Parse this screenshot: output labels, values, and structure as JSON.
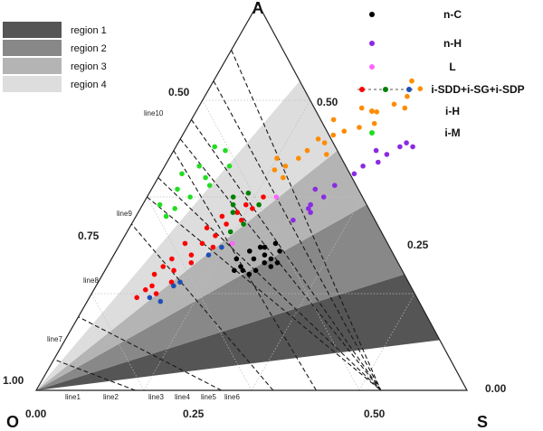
{
  "chart_data": {
    "type": "scatter",
    "subtype": "ternary",
    "vertices": {
      "top": "A",
      "left": "O",
      "right": "S"
    },
    "axis_ticks": {
      "O": [
        "0.50",
        "0.75",
        "1.00"
      ],
      "S": [
        "0.50",
        "0.25",
        "0.00"
      ],
      "base": [
        "0.00",
        "0.25",
        "0.50"
      ]
    },
    "regions": {
      "labels": [
        "region 1",
        "region 2",
        "region 3",
        "region 4"
      ],
      "colors": [
        "#555555",
        "#888888",
        "#b4b4b4",
        "#dddddd"
      ],
      "wedges": [
        {
          "name": "region 1",
          "fill": "#555555",
          "a_at_right": [
            0.13,
            0.3
          ]
        },
        {
          "name": "region 2",
          "fill": "#888888",
          "a_at_right": [
            0.3,
            0.48
          ]
        },
        {
          "name": "region 3",
          "fill": "#b4b4b4",
          "a_at_right": [
            0.48,
            0.62
          ]
        },
        {
          "name": "region 4",
          "fill": "#dddddd",
          "a_at_right": [
            0.62,
            0.8
          ]
        }
      ]
    },
    "dashed_lines": [
      {
        "label": "line1",
        "p1": [
          0.0,
          0.88
        ],
        "p2": [
          0.8,
          0.0
        ]
      },
      {
        "label": "line2",
        "p1": [
          0.0,
          0.8
        ],
        "p2": [
          0.8,
          0.0
        ]
      },
      {
        "label": "line3",
        "p1": [
          0.0,
          0.7
        ],
        "p2": [
          0.8,
          0.0
        ]
      },
      {
        "label": "line4",
        "p1": [
          0.0,
          0.65
        ],
        "p2": [
          0.8,
          0.0
        ]
      },
      {
        "label": "line5",
        "p1": [
          0.0,
          0.55
        ],
        "p2": [
          0.8,
          0.0
        ]
      },
      {
        "label": "line6",
        "p1": [
          0.0,
          0.5
        ],
        "p2": [
          0.8,
          0.0
        ]
      },
      {
        "label": "line7",
        "p1": [
          0.23,
          0.0
        ],
        "p2": [
          0.0,
          0.08
        ]
      },
      {
        "label": "line8",
        "p1": [
          0.43,
          0.0
        ],
        "p2": [
          0.0,
          0.19
        ]
      },
      {
        "label": "line9",
        "p1": [
          0.55,
          0.0
        ],
        "p2": [
          0.0,
          0.43
        ]
      },
      {
        "label": "line10",
        "p1": [
          0.65,
          0.0
        ],
        "p2": [
          0.0,
          0.62
        ]
      }
    ],
    "series": [
      {
        "name": "n-C",
        "marker_color": "#000000",
        "points": [
          [
            0.29,
            0.34
          ],
          [
            0.3,
            0.31
          ],
          [
            0.31,
            0.32
          ],
          [
            0.32,
            0.31
          ],
          [
            0.33,
            0.34
          ],
          [
            0.34,
            0.3
          ],
          [
            0.34,
            0.37
          ],
          [
            0.35,
            0.31
          ],
          [
            0.35,
            0.35
          ],
          [
            0.36,
            0.33
          ],
          [
            0.36,
            0.38
          ],
          [
            0.37,
            0.34
          ],
          [
            0.38,
            0.32
          ],
          [
            0.38,
            0.36
          ],
          [
            0.39,
            0.33
          ],
          [
            0.31,
            0.36
          ],
          [
            0.33,
            0.37
          ]
        ]
      },
      {
        "name": "n-H",
        "marker_color": "#8a2be2",
        "points": [
          [
            0.37,
            0.44
          ],
          [
            0.39,
            0.48
          ],
          [
            0.4,
            0.46
          ],
          [
            0.41,
            0.5
          ],
          [
            0.42,
            0.53
          ],
          [
            0.45,
            0.56
          ],
          [
            0.46,
            0.58
          ],
          [
            0.47,
            0.62
          ],
          [
            0.49,
            0.59
          ],
          [
            0.5,
            0.61
          ],
          [
            0.52,
            0.63
          ],
          [
            0.53,
            0.64
          ],
          [
            0.55,
            0.63
          ],
          [
            0.38,
            0.52
          ],
          [
            0.39,
            0.47
          ]
        ]
      },
      {
        "name": "L",
        "marker_color": "#ff66ff",
        "points": [
          [
            0.26,
            0.38
          ],
          [
            0.3,
            0.5
          ]
        ]
      },
      {
        "name": "i-SDD+i-SG+i-SDP",
        "marker_colors": [
          "#ff0000",
          "#008000",
          "#1e4fb4"
        ],
        "points_red": [
          [
            0.11,
            0.24
          ],
          [
            0.13,
            0.27
          ],
          [
            0.12,
            0.3
          ],
          [
            0.16,
            0.31
          ],
          [
            0.14,
            0.34
          ],
          [
            0.18,
            0.35
          ],
          [
            0.19,
            0.38
          ],
          [
            0.21,
            0.4
          ],
          [
            0.22,
            0.43
          ],
          [
            0.23,
            0.46
          ],
          [
            0.18,
            0.42
          ],
          [
            0.15,
            0.38
          ],
          [
            0.2,
            0.45
          ],
          [
            0.24,
            0.48
          ],
          [
            0.17,
            0.28
          ],
          [
            0.22,
            0.37
          ],
          [
            0.25,
            0.44
          ],
          [
            0.26,
            0.47
          ],
          [
            0.27,
            0.5
          ],
          [
            0.13,
            0.32
          ],
          [
            0.15,
            0.25
          ],
          [
            0.19,
            0.33
          ],
          [
            0.12,
            0.26
          ]
        ],
        "points_green": [
          [
            0.21,
            0.48
          ],
          [
            0.23,
            0.51
          ],
          [
            0.26,
            0.43
          ],
          [
            0.24,
            0.41
          ],
          [
            0.2,
            0.5
          ],
          [
            0.22,
            0.46
          ],
          [
            0.27,
            0.48
          ]
        ],
        "points_blue": [
          [
            0.14,
            0.24
          ],
          [
            0.18,
            0.27
          ],
          [
            0.17,
            0.23
          ],
          [
            0.22,
            0.35
          ],
          [
            0.19,
            0.28
          ],
          [
            0.24,
            0.37
          ]
        ]
      },
      {
        "name": "i-H",
        "marker_color": "#ff8c00",
        "points": [
          [
            0.28,
            0.58
          ],
          [
            0.3,
            0.6
          ],
          [
            0.31,
            0.62
          ],
          [
            0.34,
            0.64
          ],
          [
            0.35,
            0.66
          ],
          [
            0.37,
            0.67
          ],
          [
            0.4,
            0.68
          ],
          [
            0.42,
            0.72
          ],
          [
            0.45,
            0.74
          ],
          [
            0.47,
            0.76
          ],
          [
            0.49,
            0.78
          ],
          [
            0.26,
            0.57
          ],
          [
            0.33,
            0.7
          ],
          [
            0.38,
            0.73
          ],
          [
            0.43,
            0.69
          ],
          [
            0.46,
            0.8
          ],
          [
            0.48,
            0.73
          ],
          [
            0.36,
            0.61
          ],
          [
            0.32,
            0.65
          ],
          [
            0.29,
            0.55
          ],
          [
            0.25,
            0.6
          ]
        ]
      },
      {
        "name": "i-M",
        "marker_color": "#22dd22",
        "points": [
          [
            0.04,
            0.48
          ],
          [
            0.08,
            0.47
          ],
          [
            0.06,
            0.52
          ],
          [
            0.1,
            0.5
          ],
          [
            0.11,
            0.55
          ],
          [
            0.08,
            0.58
          ],
          [
            0.12,
            0.62
          ],
          [
            0.05,
            0.56
          ],
          [
            0.13,
            0.53
          ],
          [
            0.09,
            0.63
          ],
          [
            0.15,
            0.58
          ],
          [
            0.07,
            0.45
          ]
        ]
      }
    ]
  }
}
